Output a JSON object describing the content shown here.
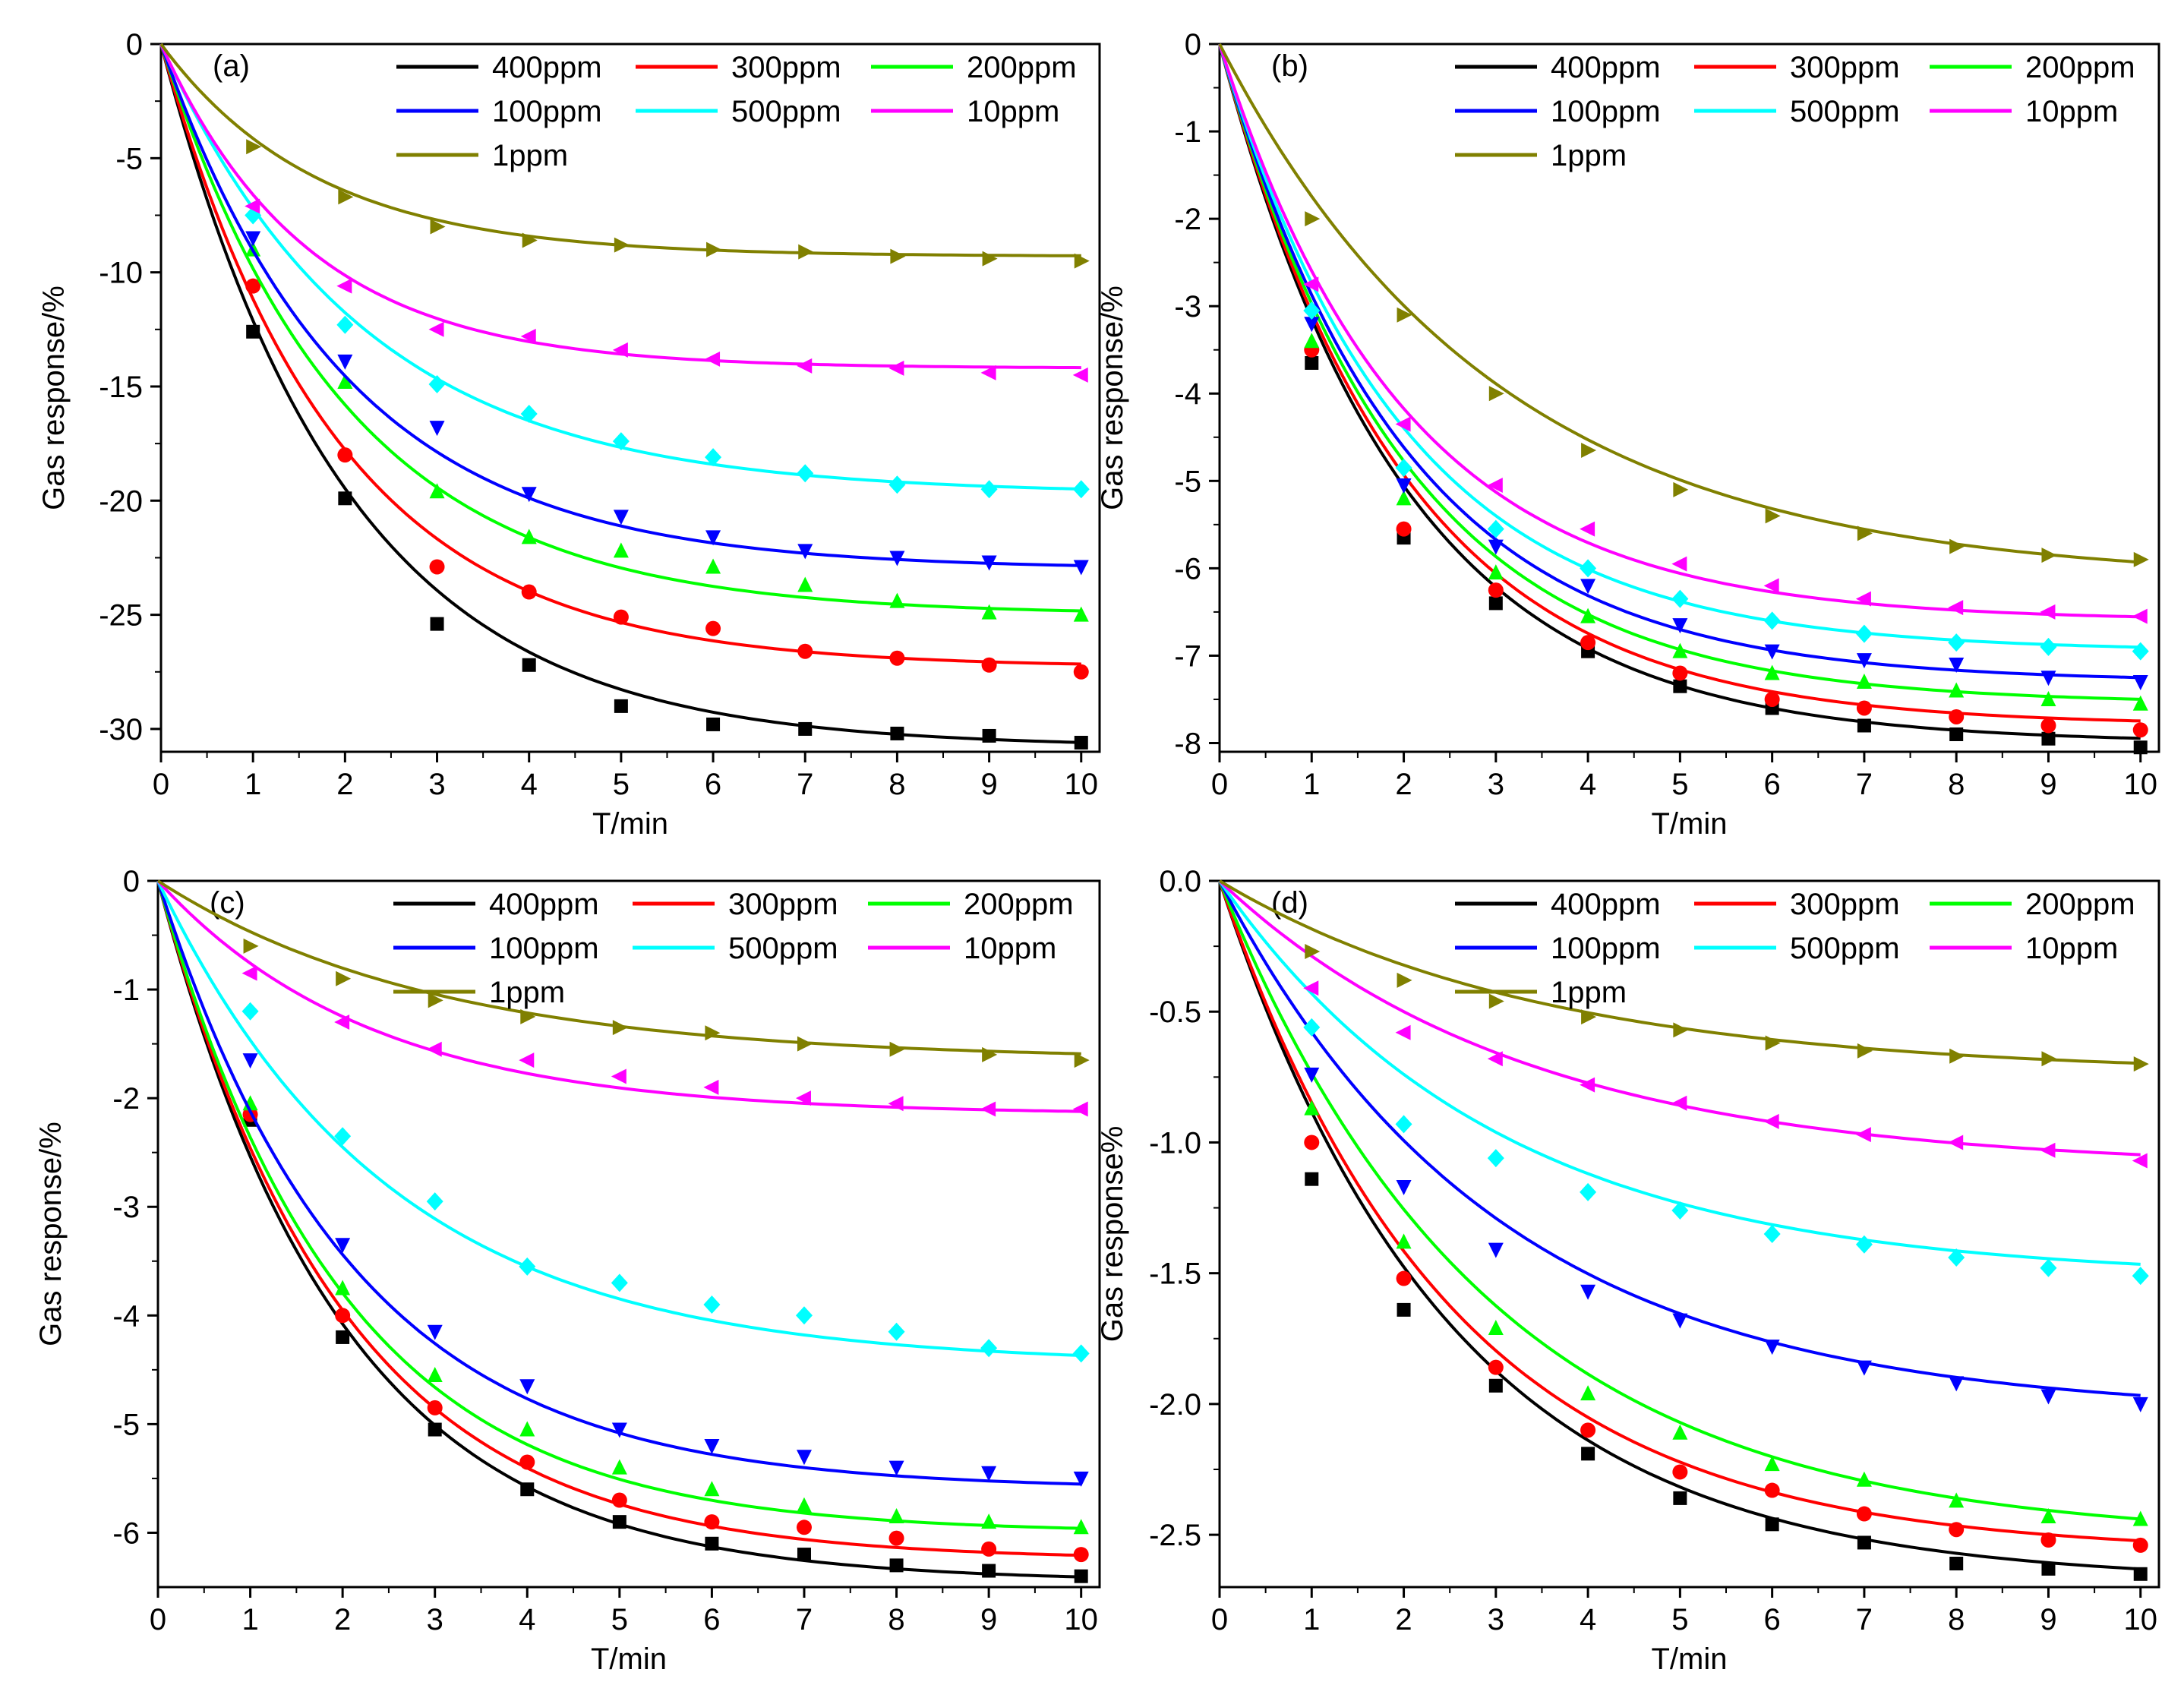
{
  "chart_data": [
    {
      "panel": "a",
      "type": "line",
      "tag": "(a)",
      "xlabel": "T/min",
      "ylabel": "Gas response/%",
      "xlim": [
        0,
        10.2
      ],
      "ylim": [
        -31,
        0
      ],
      "xticks": [
        0,
        1,
        2,
        3,
        4,
        5,
        6,
        7,
        8,
        9,
        10
      ],
      "yticks": [
        0,
        -5,
        -10,
        -15,
        -20,
        -25,
        -30
      ],
      "ytick_labels": [
        "0",
        "-5",
        "-10",
        "-15",
        "-20",
        "-25",
        "-30"
      ],
      "series": [
        {
          "name": "400ppm",
          "color": "#000000",
          "marker": "square",
          "A": -30.8,
          "tau": 2.0,
          "points": [
            -12.6,
            -19.9,
            -25.4,
            -27.2,
            -29.0,
            -29.8,
            -30.0,
            -30.2,
            -30.3,
            -30.6
          ]
        },
        {
          "name": "300ppm",
          "color": "#ff0000",
          "marker": "circle",
          "A": -27.3,
          "tau": 1.9,
          "points": [
            -10.6,
            -18.0,
            -22.9,
            -24.0,
            -25.1,
            -25.6,
            -26.6,
            -26.9,
            -27.2,
            -27.5
          ]
        },
        {
          "name": "200ppm",
          "color": "#00ff00",
          "marker": "triangle-up",
          "A": -25.0,
          "tau": 2.0,
          "points": [
            -9.0,
            -14.8,
            -19.6,
            -21.6,
            -22.2,
            -22.9,
            -23.7,
            -24.4,
            -24.9,
            -25.0
          ]
        },
        {
          "name": "100ppm",
          "color": "#0000ff",
          "marker": "triangle-down",
          "A": -23.0,
          "tau": 2.0,
          "points": [
            -8.5,
            -13.9,
            -16.8,
            -19.7,
            -20.7,
            -21.6,
            -22.2,
            -22.5,
            -22.7,
            -22.9
          ]
        },
        {
          "name": "500ppm",
          "color": "#00ffff",
          "marker": "diamond",
          "A": -19.7,
          "tau": 2.2,
          "points": [
            -7.5,
            -12.3,
            -14.9,
            -16.2,
            -17.4,
            -18.1,
            -18.8,
            -19.3,
            -19.5,
            -19.5
          ]
        },
        {
          "name": "10ppm",
          "color": "#ff00ff",
          "marker": "triangle-left",
          "A": -14.2,
          "tau": 1.6,
          "points": [
            -7.1,
            -10.6,
            -12.5,
            -12.8,
            -13.4,
            -13.8,
            -14.1,
            -14.2,
            -14.4,
            -14.5
          ]
        },
        {
          "name": "1ppm",
          "color": "#808000",
          "marker": "triangle-right",
          "A": -9.3,
          "tau": 1.7,
          "points": [
            -4.5,
            -6.7,
            -8.0,
            -8.6,
            -8.8,
            -9.0,
            -9.1,
            -9.3,
            -9.4,
            -9.5
          ]
        }
      ]
    },
    {
      "panel": "b",
      "type": "line",
      "tag": "(b)",
      "xlabel": "T/min",
      "ylabel": "Gas response/%",
      "xlim": [
        0,
        10.2
      ],
      "ylim": [
        -8.1,
        0
      ],
      "xticks": [
        0,
        1,
        2,
        3,
        4,
        5,
        6,
        7,
        8,
        9,
        10
      ],
      "yticks": [
        0,
        -1,
        -2,
        -3,
        -4,
        -5,
        -6,
        -7,
        -8
      ],
      "ytick_labels": [
        "0",
        "-1",
        "-2",
        "-3",
        "-4",
        "-5",
        "-6",
        "-7",
        "-8"
      ],
      "series": [
        {
          "name": "400ppm",
          "color": "#000000",
          "marker": "square",
          "A": -8.0,
          "tau": 2.0,
          "points": [
            -3.65,
            -5.65,
            -6.4,
            -6.95,
            -7.35,
            -7.6,
            -7.8,
            -7.9,
            -7.95,
            -8.05
          ]
        },
        {
          "name": "300ppm",
          "color": "#ff0000",
          "marker": "circle",
          "A": -7.8,
          "tau": 2.0,
          "points": [
            -3.5,
            -5.55,
            -6.25,
            -6.85,
            -7.2,
            -7.5,
            -7.6,
            -7.7,
            -7.8,
            -7.85
          ]
        },
        {
          "name": "200ppm",
          "color": "#00ff00",
          "marker": "triangle-up",
          "A": -7.55,
          "tau": 2.0,
          "points": [
            -3.4,
            -5.2,
            -6.05,
            -6.55,
            -6.95,
            -7.2,
            -7.3,
            -7.4,
            -7.5,
            -7.55
          ]
        },
        {
          "name": "100ppm",
          "color": "#0000ff",
          "marker": "triangle-down",
          "A": -7.3,
          "tau": 2.0,
          "points": [
            -3.2,
            -5.05,
            -5.75,
            -6.2,
            -6.65,
            -6.95,
            -7.05,
            -7.1,
            -7.25,
            -7.3
          ]
        },
        {
          "name": "500ppm",
          "color": "#00ffff",
          "marker": "diamond",
          "A": -6.95,
          "tau": 2.0,
          "points": [
            -3.05,
            -4.85,
            -5.55,
            -6.0,
            -6.35,
            -6.6,
            -6.75,
            -6.85,
            -6.9,
            -6.95
          ]
        },
        {
          "name": "10ppm",
          "color": "#ff00ff",
          "marker": "triangle-left",
          "A": -6.6,
          "tau": 2.0,
          "points": [
            -2.75,
            -4.35,
            -5.05,
            -5.55,
            -5.95,
            -6.2,
            -6.35,
            -6.45,
            -6.5,
            -6.55
          ]
        },
        {
          "name": "1ppm",
          "color": "#808000",
          "marker": "triangle-right",
          "A": -6.15,
          "tau": 3.0,
          "points": [
            -2.0,
            -3.1,
            -4.0,
            -4.65,
            -5.1,
            -5.4,
            -5.6,
            -5.75,
            -5.85,
            -5.9
          ]
        }
      ]
    },
    {
      "panel": "c",
      "type": "line",
      "tag": "(c)",
      "xlabel": "T/min",
      "ylabel": "Gas response/%",
      "xlim": [
        0,
        10.2
      ],
      "ylim": [
        -6.5,
        0
      ],
      "xticks": [
        0,
        1,
        2,
        3,
        4,
        5,
        6,
        7,
        8,
        9,
        10
      ],
      "yticks": [
        0,
        -1,
        -2,
        -3,
        -4,
        -5,
        -6
      ],
      "ytick_labels": [
        "0",
        "-1",
        "-2",
        "-3",
        "-4",
        "-5",
        "-6"
      ],
      "series": [
        {
          "name": "400ppm",
          "color": "#000000",
          "marker": "square",
          "A": -6.45,
          "tau": 2.0,
          "points": [
            -2.2,
            -4.2,
            -5.05,
            -5.6,
            -5.9,
            -6.1,
            -6.2,
            -6.3,
            -6.35,
            -6.4
          ]
        },
        {
          "name": "300ppm",
          "color": "#ff0000",
          "marker": "circle",
          "A": -6.25,
          "tau": 2.0,
          "points": [
            -2.15,
            -4.0,
            -4.85,
            -5.35,
            -5.7,
            -5.9,
            -5.95,
            -6.05,
            -6.15,
            -6.2
          ]
        },
        {
          "name": "200ppm",
          "color": "#00ff00",
          "marker": "triangle-up",
          "A": -6.0,
          "tau": 2.0,
          "points": [
            -2.05,
            -3.75,
            -4.55,
            -5.05,
            -5.4,
            -5.6,
            -5.75,
            -5.85,
            -5.9,
            -5.95
          ]
        },
        {
          "name": "100ppm",
          "color": "#0000ff",
          "marker": "triangle-down",
          "A": -5.6,
          "tau": 2.1,
          "points": [
            -1.65,
            -3.35,
            -4.15,
            -4.65,
            -5.05,
            -5.2,
            -5.3,
            -5.4,
            -5.45,
            -5.5
          ]
        },
        {
          "name": "500ppm",
          "color": "#00ffff",
          "marker": "diamond",
          "A": -4.45,
          "tau": 2.5,
          "points": [
            -1.2,
            -2.35,
            -2.95,
            -3.55,
            -3.7,
            -3.9,
            -4.0,
            -4.15,
            -4.3,
            -4.35
          ]
        },
        {
          "name": "10ppm",
          "color": "#ff00ff",
          "marker": "triangle-left",
          "A": -2.15,
          "tau": 2.3,
          "points": [
            -0.85,
            -1.3,
            -1.55,
            -1.65,
            -1.8,
            -1.9,
            -2.0,
            -2.05,
            -2.1,
            -2.1
          ]
        },
        {
          "name": "1ppm",
          "color": "#808000",
          "marker": "triangle-right",
          "A": -1.65,
          "tau": 3.0,
          "points": [
            -0.6,
            -0.9,
            -1.1,
            -1.25,
            -1.35,
            -1.4,
            -1.5,
            -1.55,
            -1.6,
            -1.65
          ]
        }
      ]
    },
    {
      "panel": "d",
      "type": "line",
      "tag": "(d)",
      "xlabel": "T/min",
      "ylabel": "Gas response%",
      "xlim": [
        0,
        10.2
      ],
      "ylim": [
        -2.7,
        0
      ],
      "xticks": [
        0,
        1,
        2,
        3,
        4,
        5,
        6,
        7,
        8,
        9,
        10
      ],
      "yticks": [
        0,
        -0.5,
        -1.0,
        -1.5,
        -2.0,
        -2.5
      ],
      "ytick_labels": [
        "0.0",
        "-0.5",
        "-1.0",
        "-1.5",
        "-2.0",
        "-2.5"
      ],
      "series": [
        {
          "name": "400ppm",
          "color": "#000000",
          "marker": "square",
          "A": -2.68,
          "tau": 2.5,
          "points": [
            -1.14,
            -1.64,
            -1.93,
            -2.19,
            -2.36,
            -2.46,
            -2.53,
            -2.61,
            -2.63,
            -2.65
          ]
        },
        {
          "name": "300ppm",
          "color": "#ff0000",
          "marker": "circle",
          "A": -2.57,
          "tau": 2.5,
          "points": [
            -1.0,
            -1.52,
            -1.86,
            -2.1,
            -2.26,
            -2.33,
            -2.42,
            -2.48,
            -2.52,
            -2.54
          ]
        },
        {
          "name": "200ppm",
          "color": "#00ff00",
          "marker": "triangle-up",
          "A": -2.52,
          "tau": 2.9,
          "points": [
            -0.87,
            -1.38,
            -1.71,
            -1.96,
            -2.11,
            -2.23,
            -2.29,
            -2.37,
            -2.43,
            -2.44
          ]
        },
        {
          "name": "100ppm",
          "color": "#0000ff",
          "marker": "triangle-down",
          "A": -2.04,
          "tau": 3.0,
          "points": [
            -0.74,
            -1.17,
            -1.41,
            -1.57,
            -1.68,
            -1.78,
            -1.86,
            -1.92,
            -1.97,
            -2.0
          ]
        },
        {
          "name": "500ppm",
          "color": "#00ffff",
          "marker": "diamond",
          "A": -1.52,
          "tau": 3.0,
          "points": [
            -0.56,
            -0.93,
            -1.06,
            -1.19,
            -1.26,
            -1.35,
            -1.39,
            -1.44,
            -1.48,
            -1.51
          ]
        },
        {
          "name": "10ppm",
          "color": "#ff00ff",
          "marker": "triangle-left",
          "A": -1.1,
          "tau": 3.3,
          "points": [
            -0.41,
            -0.58,
            -0.68,
            -0.78,
            -0.85,
            -0.92,
            -0.97,
            -1.0,
            -1.03,
            -1.07
          ]
        },
        {
          "name": "1ppm",
          "color": "#808000",
          "marker": "triangle-right",
          "A": -0.74,
          "tau": 3.5,
          "points": [
            -0.27,
            -0.38,
            -0.46,
            -0.52,
            -0.57,
            -0.62,
            -0.65,
            -0.67,
            -0.68,
            -0.7
          ]
        }
      ]
    }
  ]
}
